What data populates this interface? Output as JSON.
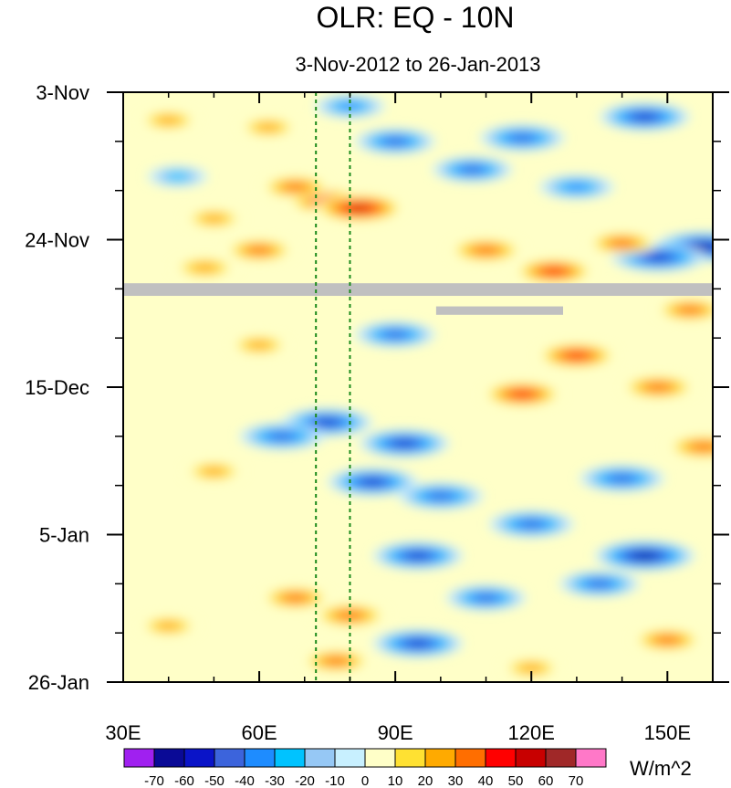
{
  "chart_data": {
    "type": "heatmap",
    "title": "OLR: EQ - 10N",
    "subtitle": "3-Nov-2012 to 26-Jan-2013",
    "x_axis": {
      "range": [
        30,
        160
      ],
      "ticks": [
        30,
        60,
        90,
        120,
        150
      ],
      "tick_labels": [
        "30E",
        "60E",
        "90E",
        "120E",
        "150E"
      ],
      "dashed_reference_lines": [
        72.5,
        80
      ]
    },
    "y_axis": {
      "range_days_from_start": [
        0,
        84
      ],
      "ticks": [
        0,
        21,
        42,
        63,
        84
      ],
      "tick_labels": [
        "3-Nov",
        "24-Nov",
        "15-Dec",
        "5-Jan",
        "26-Jan"
      ]
    },
    "missing_data_color": "#c0c0c0",
    "missing_bands": [
      {
        "day_start": 27.2,
        "day_end": 29.0,
        "lon_start": 30,
        "lon_end": 160
      },
      {
        "day_start": 30.5,
        "day_end": 31.7,
        "lon_start": 99,
        "lon_end": 127
      }
    ],
    "colorbar": {
      "units": "W/m^2",
      "levels": [
        -70,
        -60,
        -50,
        -40,
        -30,
        -20,
        -10,
        0,
        10,
        20,
        30,
        40,
        50,
        60,
        70
      ],
      "level_labels": [
        "-70",
        "-60",
        "-50",
        "-40",
        "-30",
        "-20",
        "-10",
        "0",
        "10",
        "20",
        "30",
        "40",
        "50",
        "60",
        "70"
      ],
      "colors": [
        "#a020f0",
        "#0a0a96",
        "#0a14c8",
        "#3c64dc",
        "#1e8cff",
        "#00c3ff",
        "#96c8f5",
        "#c8f0ff",
        "#ffffc8",
        "#ffe132",
        "#ffaa00",
        "#ff6e00",
        "#ff0000",
        "#c80000",
        "#a02828",
        "#ff78c8"
      ]
    },
    "anomaly_features": [
      {
        "label": "negative",
        "lon": 80,
        "day": 2.0,
        "value": -30
      },
      {
        "label": "negative",
        "lon": 90,
        "day": 7.0,
        "value": -40
      },
      {
        "label": "negative",
        "lon": 118,
        "day": 6.5,
        "value": -45
      },
      {
        "label": "negative",
        "lon": 145,
        "day": 3.5,
        "value": -50
      },
      {
        "label": "negative",
        "lon": 107,
        "day": 11.0,
        "value": -40
      },
      {
        "label": "negative",
        "lon": 130,
        "day": 13.5,
        "value": -35
      },
      {
        "label": "negative",
        "lon": 158,
        "day": 22.0,
        "value": -60
      },
      {
        "label": "negative",
        "lon": 148,
        "day": 23.5,
        "value": -55
      },
      {
        "label": "negative",
        "lon": 90,
        "day": 34.5,
        "value": -40
      },
      {
        "label": "negative",
        "lon": 75,
        "day": 47.0,
        "value": -50
      },
      {
        "label": "negative",
        "lon": 92,
        "day": 50.0,
        "value": -50
      },
      {
        "label": "negative",
        "lon": 65,
        "day": 49.0,
        "value": -45
      },
      {
        "label": "negative",
        "lon": 85,
        "day": 55.5,
        "value": -50
      },
      {
        "label": "negative",
        "lon": 100,
        "day": 57.5,
        "value": -45
      },
      {
        "label": "negative",
        "lon": 120,
        "day": 61.5,
        "value": -45
      },
      {
        "label": "negative",
        "lon": 145,
        "day": 66.0,
        "value": -60
      },
      {
        "label": "negative",
        "lon": 95,
        "day": 66.0,
        "value": -50
      },
      {
        "label": "negative",
        "lon": 95,
        "day": 78.5,
        "value": -50
      },
      {
        "label": "negative",
        "lon": 110,
        "day": 72.0,
        "value": -40
      },
      {
        "label": "negative",
        "lon": 135,
        "day": 70.0,
        "value": -40
      },
      {
        "label": "negative",
        "lon": 42,
        "day": 12.0,
        "value": -20
      },
      {
        "label": "negative",
        "lon": 140,
        "day": 55.0,
        "value": -45
      },
      {
        "label": "positive",
        "lon": 75,
        "day": 15.5,
        "value": 40
      },
      {
        "label": "positive",
        "lon": 82,
        "day": 16.5,
        "value": 50
      },
      {
        "label": "positive",
        "lon": 68,
        "day": 13.5,
        "value": 30
      },
      {
        "label": "positive",
        "lon": 60,
        "day": 22.5,
        "value": 30
      },
      {
        "label": "positive",
        "lon": 110,
        "day": 22.5,
        "value": 35
      },
      {
        "label": "positive",
        "lon": 125,
        "day": 25.5,
        "value": 40
      },
      {
        "label": "positive",
        "lon": 140,
        "day": 21.5,
        "value": 30
      },
      {
        "label": "positive",
        "lon": 48,
        "day": 25.0,
        "value": 25
      },
      {
        "label": "positive",
        "lon": 130,
        "day": 37.5,
        "value": 40
      },
      {
        "label": "positive",
        "lon": 118,
        "day": 43.0,
        "value": 40
      },
      {
        "label": "positive",
        "lon": 148,
        "day": 42.0,
        "value": 35
      },
      {
        "label": "positive",
        "lon": 158,
        "day": 50.5,
        "value": 35
      },
      {
        "label": "positive",
        "lon": 155,
        "day": 31.0,
        "value": 30
      },
      {
        "label": "positive",
        "lon": 40,
        "day": 4.0,
        "value": 20
      },
      {
        "label": "positive",
        "lon": 62,
        "day": 5.0,
        "value": 20
      },
      {
        "label": "positive",
        "lon": 50,
        "day": 18.0,
        "value": 20
      },
      {
        "label": "positive",
        "lon": 50,
        "day": 54.0,
        "value": 20
      },
      {
        "label": "positive",
        "lon": 68,
        "day": 72.0,
        "value": 30
      },
      {
        "label": "positive",
        "lon": 80,
        "day": 74.5,
        "value": 35
      },
      {
        "label": "positive",
        "lon": 77,
        "day": 81.0,
        "value": 30
      },
      {
        "label": "positive",
        "lon": 40,
        "day": 76.0,
        "value": 20
      },
      {
        "label": "positive",
        "lon": 150,
        "day": 78.0,
        "value": 30
      },
      {
        "label": "positive",
        "lon": 120,
        "day": 82.0,
        "value": 20
      },
      {
        "label": "positive",
        "lon": 60,
        "day": 36.0,
        "value": 20
      }
    ]
  }
}
